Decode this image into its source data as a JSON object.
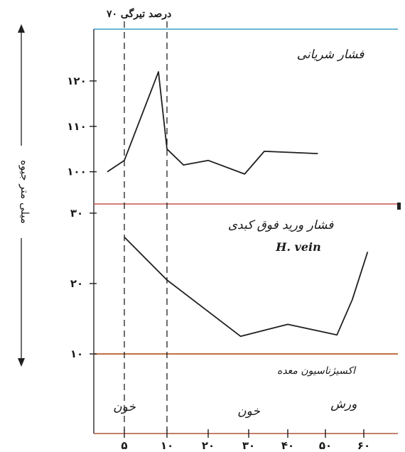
{
  "chart_data": {
    "type": "line",
    "ylabel": "میلی متر جیوه",
    "x_ticks": [
      "۵",
      "۱۰",
      "۲۰",
      "۳۰",
      "۴۰",
      "۵۰",
      "۶۰"
    ],
    "x_tick_values": [
      5,
      10,
      20,
      30,
      40,
      50,
      60
    ],
    "top_annotation": "۷۰ درصد تیرگی",
    "panels": [
      {
        "name": "فشار شریانی",
        "y_ticks": [
          "۱۰۰",
          "۱۱۰",
          "۱۲۰"
        ],
        "y_tick_values": [
          100,
          110,
          120
        ],
        "ylim": [
          94,
          130
        ],
        "x": [
          3,
          5,
          9,
          10,
          14,
          20,
          29,
          34,
          48
        ],
        "y": [
          100,
          102.5,
          122,
          105,
          101.5,
          102.5,
          99.5,
          104.5,
          104
        ]
      },
      {
        "name": "فشار ورید فوق کبدی",
        "subtitle": "H. vein",
        "y_ticks": [
          "۱۰",
          "۲۰",
          "۳۰"
        ],
        "y_tick_values": [
          10,
          20,
          30
        ],
        "ylim": [
          10,
          31
        ],
        "x": [
          5,
          10,
          28,
          40,
          53,
          57,
          61
        ],
        "y": [
          26.6,
          20.5,
          12.5,
          14.2,
          12.7,
          17.7,
          24.5
        ]
      }
    ],
    "bottom_band": {
      "label": "اکسیژناسیون معده",
      "annotations": [
        {
          "text": "خون",
          "x": 5
        },
        {
          "text": "خون",
          "x": 30
        },
        {
          "text": "ورش",
          "x": 57
        }
      ]
    },
    "marker_lines_x": [
      5,
      10
    ],
    "colors": {
      "top_border": "#3aa0c8",
      "divider_top": "#c4544e",
      "divider_bottom": "#b85a2a",
      "x_axis": "#b0563a",
      "right_mark": "#222222"
    }
  }
}
